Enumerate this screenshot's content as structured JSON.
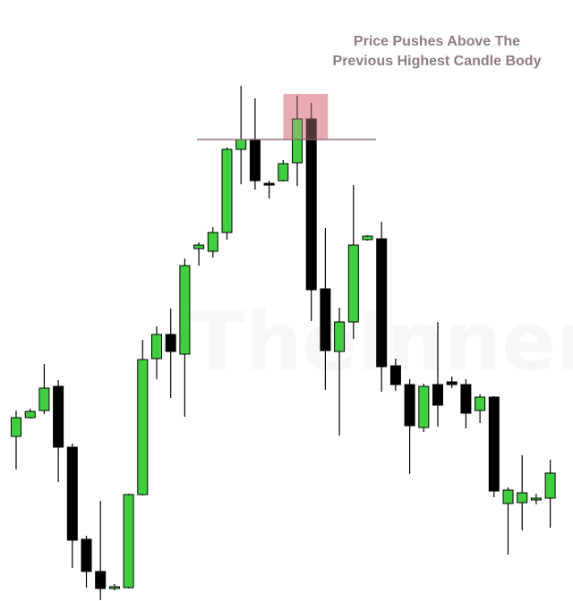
{
  "annotation": {
    "line1": "Price Pushes Above The",
    "line2": "Previous Highest Candle Body"
  },
  "watermark": "TheInnerCircle",
  "colors": {
    "bullish": "#3fcf3f",
    "bearish": "#000000",
    "wick": "#000000",
    "highlight": "#e49aa3",
    "reference_line": "#8a5c62"
  },
  "chart_data": {
    "type": "candlestick",
    "ylim": [
      0,
      672
    ],
    "reference_line_level": 516,
    "highlight": {
      "candle_index": [
        20,
        21
      ]
    },
    "candles": [
      {
        "o": 184,
        "c": 205,
        "h": 213,
        "l": 147
      },
      {
        "o": 205,
        "c": 212,
        "h": 215,
        "l": 204
      },
      {
        "o": 213,
        "c": 238,
        "h": 265,
        "l": 209
      },
      {
        "o": 240,
        "c": 172,
        "h": 247,
        "l": 133
      },
      {
        "o": 172,
        "c": 68,
        "h": 176,
        "l": 37
      },
      {
        "o": 69,
        "c": 33,
        "h": 73,
        "l": 15
      },
      {
        "o": 33,
        "c": 14,
        "h": 112,
        "l": 1
      },
      {
        "o": 14,
        "c": 16,
        "h": 19,
        "l": 12
      },
      {
        "o": 15,
        "c": 119,
        "h": 120,
        "l": 14
      },
      {
        "o": 119,
        "c": 270,
        "h": 292,
        "l": 118
      },
      {
        "o": 271,
        "c": 298,
        "h": 307,
        "l": 248
      },
      {
        "o": 298,
        "c": 279,
        "h": 327,
        "l": 227
      },
      {
        "o": 276,
        "c": 375,
        "h": 383,
        "l": 206
      },
      {
        "o": 394,
        "c": 398,
        "h": 401,
        "l": 375
      },
      {
        "o": 391,
        "c": 412,
        "h": 418,
        "l": 384
      },
      {
        "o": 412,
        "c": 505,
        "h": 507,
        "l": 404
      },
      {
        "o": 505,
        "c": 516,
        "h": 576,
        "l": 466
      },
      {
        "o": 515,
        "c": 470,
        "h": 562,
        "l": 460
      },
      {
        "o": 467,
        "c": 466,
        "h": 470,
        "l": 450
      },
      {
        "o": 470,
        "c": 489,
        "h": 493,
        "l": 469
      },
      {
        "o": 490,
        "c": 539,
        "h": 565,
        "l": 464
      },
      {
        "o": 539,
        "c": 348,
        "h": 557,
        "l": 313
      },
      {
        "o": 349,
        "c": 280,
        "h": 417,
        "l": 236
      },
      {
        "o": 279,
        "c": 312,
        "h": 328,
        "l": 185
      },
      {
        "o": 312,
        "c": 398,
        "h": 465,
        "l": 293
      },
      {
        "o": 404,
        "c": 408,
        "h": 409,
        "l": 403
      },
      {
        "o": 405,
        "c": 262,
        "h": 424,
        "l": 234
      },
      {
        "o": 263,
        "c": 242,
        "h": 271,
        "l": 235
      },
      {
        "o": 242,
        "c": 196,
        "h": 248,
        "l": 142
      },
      {
        "o": 194,
        "c": 240,
        "h": 243,
        "l": 189
      },
      {
        "o": 242,
        "c": 219,
        "h": 312,
        "l": 195
      },
      {
        "o": 245,
        "c": 242,
        "h": 251,
        "l": 238
      },
      {
        "o": 242,
        "c": 210,
        "h": 248,
        "l": 193
      },
      {
        "o": 213,
        "c": 228,
        "h": 231,
        "l": 199
      },
      {
        "o": 228,
        "c": 123,
        "h": 229,
        "l": 116
      },
      {
        "o": 109,
        "c": 124,
        "h": 127,
        "l": 52
      },
      {
        "o": 110,
        "c": 121,
        "h": 163,
        "l": 79
      },
      {
        "o": 113,
        "c": 115,
        "h": 120,
        "l": 108
      },
      {
        "o": 115,
        "c": 143,
        "h": 158,
        "l": 82
      }
    ]
  }
}
